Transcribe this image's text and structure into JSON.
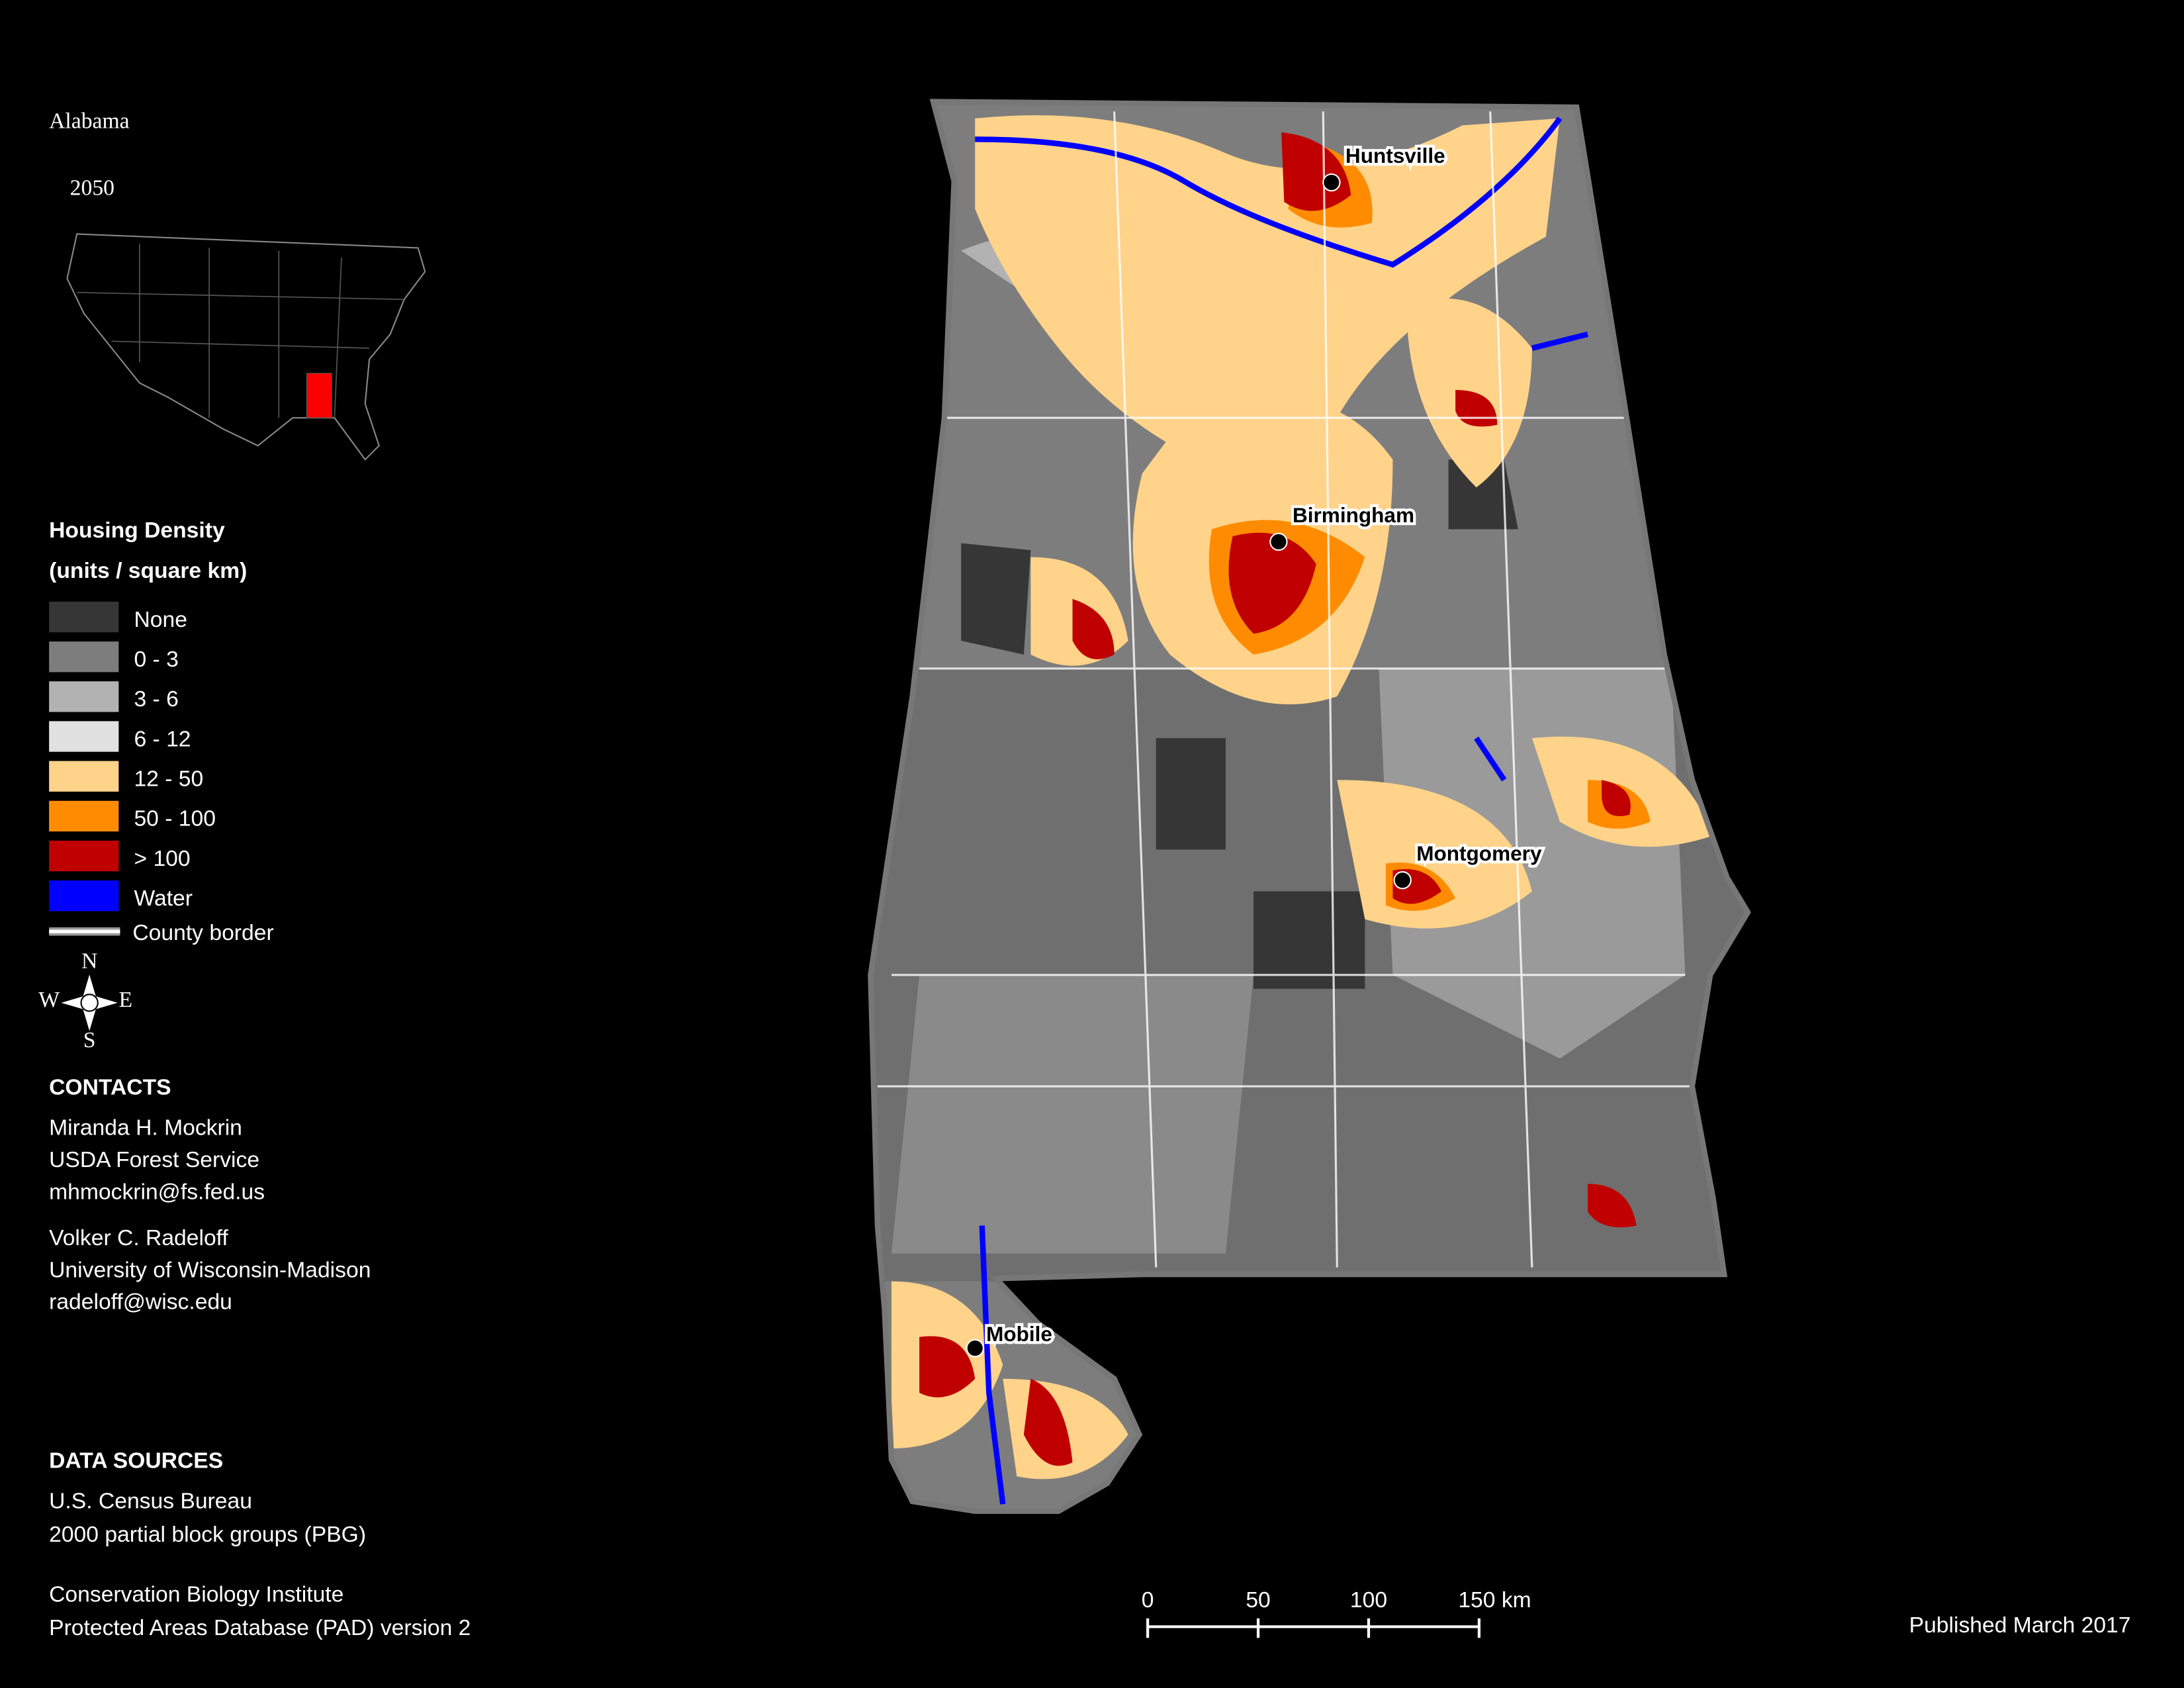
{
  "title": "Alabama",
  "subtitle": "2050",
  "legend": {
    "title": "Housing Density",
    "subtitle": "(units / square km)",
    "items": [
      {
        "label": "None",
        "color": "#363636"
      },
      {
        "label": "0 - 3",
        "color": "#7d7d7d"
      },
      {
        "label": "3 - 6",
        "color": "#b2b2b2"
      },
      {
        "label": "6 - 12",
        "color": "#e1e1e1"
      },
      {
        "label": "12 - 50",
        "color": "#ffd38a"
      },
      {
        "label": "50 - 100",
        "color": "#ff8c00"
      },
      {
        "label": "> 100",
        "color": "#c00000"
      },
      {
        "label": "Water",
        "color": "#0000ff"
      },
      {
        "label": "County border",
        "color": "#ffffff"
      }
    ]
  },
  "compass": {
    "n": "N",
    "e": "E",
    "s": "S",
    "w": "W"
  },
  "cities": [
    {
      "name": "Huntsville"
    },
    {
      "name": "Birmingham"
    },
    {
      "name": "Montgomery"
    },
    {
      "name": "Mobile"
    }
  ],
  "contacts": {
    "heading": "CONTACTS",
    "people": [
      [
        "Miranda H. Mockrin",
        "USDA Forest Service",
        "mhmockrin@fs.fed.us"
      ],
      [
        "Volker C. Radeloff",
        "University of Wisconsin-Madison",
        "radeloff@wisc.edu"
      ]
    ]
  },
  "data_sources": {
    "heading": "DATA SOURCES",
    "groups": [
      [
        "U.S. Census Bureau",
        "2000 partial block groups (PBG)"
      ],
      [
        "Conservation Biology Institute",
        "Protected Areas Database (PAD) version 2"
      ]
    ]
  },
  "scale_bar": {
    "ticks": [
      0,
      50,
      100,
      {
        "value": 150,
        "label": "150 km"
      }
    ]
  },
  "published": "Published March 2017"
}
